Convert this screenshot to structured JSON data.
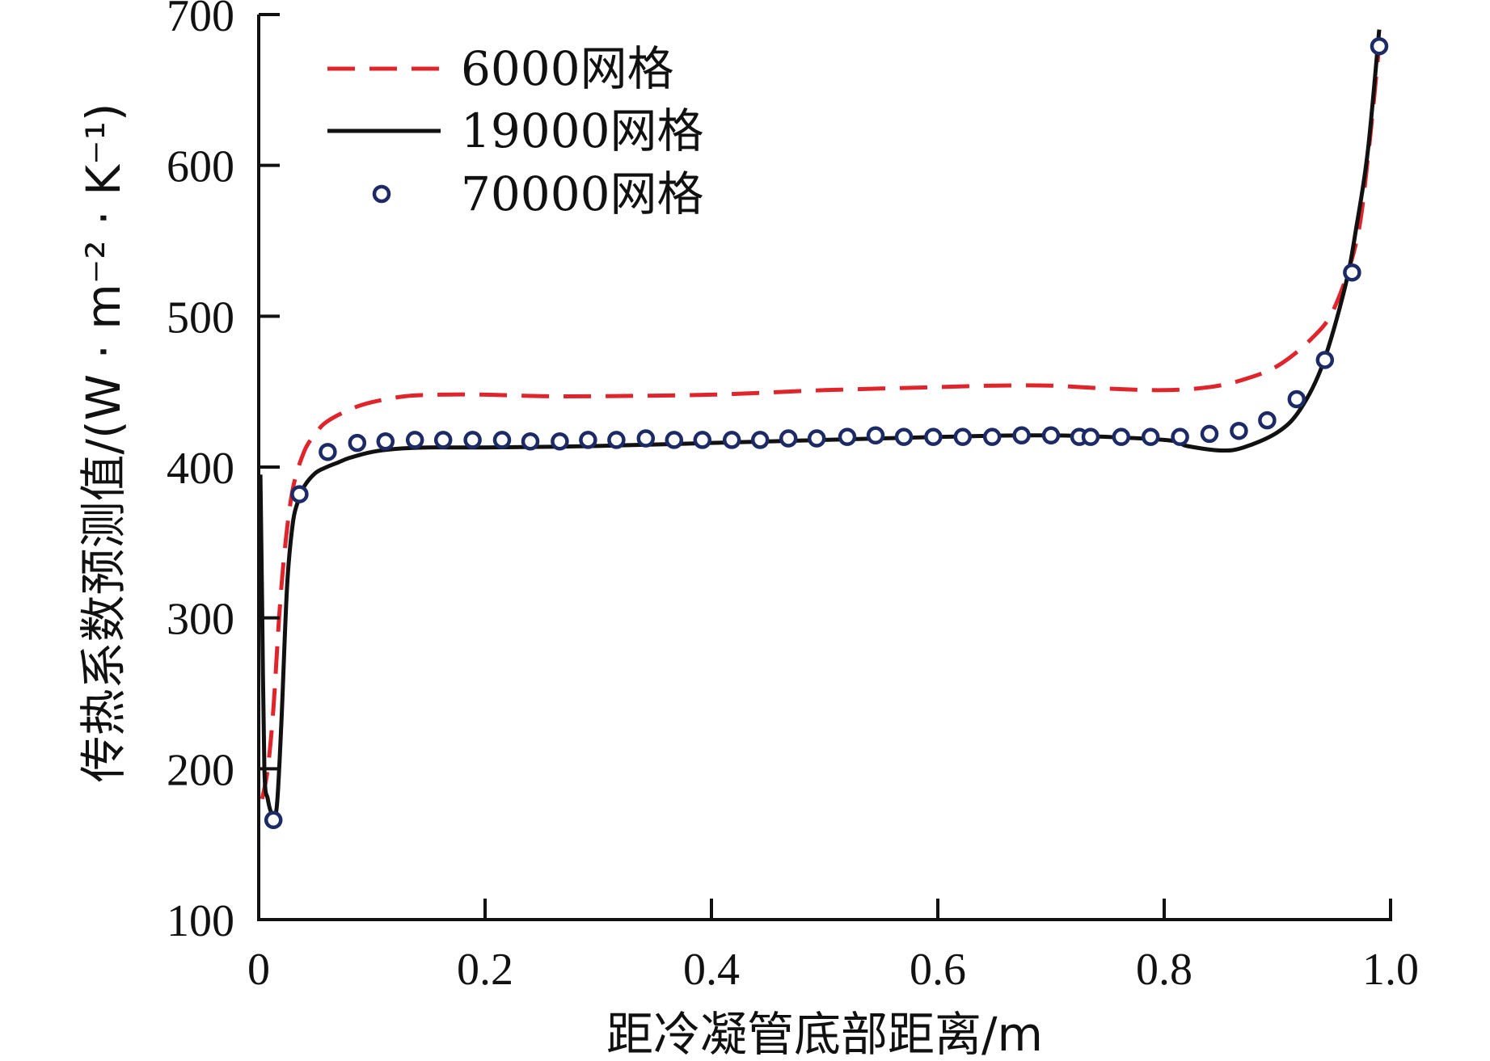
{
  "chart_data": {
    "type": "line",
    "xlabel": "距冷凝管底部距离/m",
    "ylabel": "传热系数预测值/(W · m⁻² · K⁻¹)",
    "xlim": [
      0,
      1.0
    ],
    "ylim": [
      100,
      700
    ],
    "xticks": [
      0,
      0.2,
      0.4,
      0.6,
      0.8,
      1.0
    ],
    "xtick_labels": [
      "0",
      "0.2",
      "0.4",
      "0.6",
      "0.8",
      "1.0"
    ],
    "yticks": [
      100,
      200,
      300,
      400,
      500,
      600,
      700
    ],
    "ytick_labels": [
      "100",
      "200",
      "300",
      "400",
      "500",
      "600",
      "700"
    ],
    "grid": false,
    "legend_position": "top-left",
    "series": [
      {
        "name": "6000网格",
        "style": "dashed",
        "color": "#e0242b",
        "x": [
          0.003,
          0.008,
          0.013,
          0.018,
          0.023,
          0.03,
          0.04,
          0.05,
          0.06,
          0.08,
          0.1,
          0.13,
          0.16,
          0.2,
          0.25,
          0.3,
          0.4,
          0.5,
          0.6,
          0.65,
          0.7,
          0.75,
          0.8,
          0.84,
          0.87,
          0.9,
          0.93,
          0.95,
          0.97,
          0.98,
          0.99
        ],
        "y": [
          180,
          200,
          240,
          300,
          345,
          385,
          410,
          422,
          430,
          438,
          443,
          447,
          448,
          448,
          447,
          447,
          448,
          451,
          453,
          454,
          454,
          452,
          451,
          453,
          458,
          467,
          485,
          505,
          550,
          605,
          680
        ]
      },
      {
        "name": "19000网格",
        "style": "solid",
        "color": "#111111",
        "x": [
          0.0015,
          0.003,
          0.005,
          0.008,
          0.012,
          0.016,
          0.02,
          0.025,
          0.03,
          0.035,
          0.04,
          0.05,
          0.06,
          0.07,
          0.08,
          0.1,
          0.12,
          0.15,
          0.2,
          0.3,
          0.4,
          0.5,
          0.6,
          0.7,
          0.8,
          0.82,
          0.85,
          0.87,
          0.9,
          0.92,
          0.94,
          0.96,
          0.97,
          0.98,
          0.99
        ],
        "y": [
          395,
          310,
          200,
          180,
          170,
          175,
          230,
          320,
          362,
          378,
          387,
          396,
          400,
          403,
          406,
          410,
          412,
          413,
          413,
          414,
          416,
          418,
          420,
          421,
          418,
          414,
          411,
          413,
          423,
          438,
          468,
          520,
          560,
          610,
          690
        ]
      },
      {
        "name": "70000网格",
        "style": "markers",
        "color": "#1c2a66",
        "x": [
          0.013,
          0.036,
          0.061,
          0.087,
          0.112,
          0.138,
          0.163,
          0.189,
          0.215,
          0.24,
          0.266,
          0.291,
          0.316,
          0.342,
          0.367,
          0.392,
          0.418,
          0.443,
          0.468,
          0.493,
          0.52,
          0.545,
          0.57,
          0.596,
          0.622,
          0.648,
          0.674,
          0.7,
          0.725,
          0.735,
          0.762,
          0.788,
          0.814,
          0.84,
          0.866,
          0.891,
          0.917,
          0.942,
          0.966,
          0.99
        ],
        "y": [
          166,
          382,
          410,
          416,
          417,
          418,
          418,
          418,
          418,
          417,
          417,
          418,
          418,
          419,
          418,
          418,
          418,
          418,
          419,
          419,
          420,
          421,
          420,
          420,
          420,
          420,
          421,
          421,
          420,
          420,
          420,
          420,
          420,
          422,
          424,
          431,
          445,
          471,
          529,
          679
        ]
      }
    ]
  }
}
